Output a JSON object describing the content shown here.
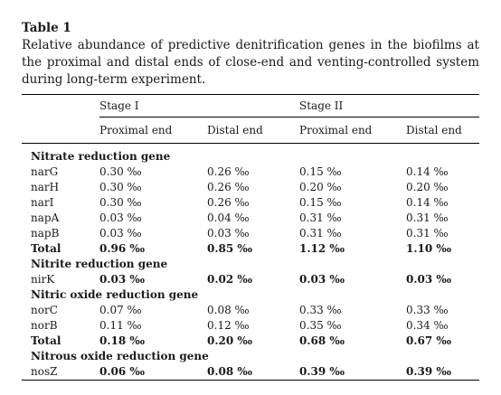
{
  "table_label": "Table 1",
  "caption": "Relative abundance of predictive denitrification genes in the biofilms at the proximal and distal ends of close-end and venting-controlled system during long-term experiment.",
  "stages": [
    "Stage I",
    "Stage II"
  ],
  "columns": [
    "Proximal end",
    "Distal end",
    "Proximal end",
    "Distal end"
  ],
  "sections": [
    {
      "title": "Nitrate reduction gene",
      "rows": [
        {
          "gene": "narG",
          "values": [
            "0.30 ‰",
            "0.26 ‰",
            "0.15 ‰",
            "0.14 ‰"
          ]
        },
        {
          "gene": "narH",
          "values": [
            "0.30 ‰",
            "0.26 ‰",
            "0.20 ‰",
            "0.20 ‰"
          ]
        },
        {
          "gene": "narI",
          "values": [
            "0.30 ‰",
            "0.26 ‰",
            "0.15 ‰",
            "0.14 ‰"
          ]
        },
        {
          "gene": "napA",
          "values": [
            "0.03 ‰",
            "0.04 ‰",
            "0.31 ‰",
            "0.31 ‰"
          ]
        },
        {
          "gene": "napB",
          "values": [
            "0.03 ‰",
            "0.03 ‰",
            "0.31 ‰",
            "0.31 ‰"
          ]
        },
        {
          "gene": "Total",
          "values": [
            "0.96 ‰",
            "0.85 ‰",
            "1.12 ‰",
            "1.10 ‰"
          ],
          "bold": true
        }
      ]
    },
    {
      "title": "Nitrite reduction gene",
      "rows": [
        {
          "gene": "nirK",
          "values": [
            "0.03 ‰",
            "0.02 ‰",
            "0.03 ‰",
            "0.03 ‰"
          ],
          "bold_values": true
        }
      ]
    },
    {
      "title": "Nitric oxide reduction gene",
      "rows": [
        {
          "gene": "norC",
          "values": [
            "0.07 ‰",
            "0.08 ‰",
            "0.33 ‰",
            "0.33 ‰"
          ]
        },
        {
          "gene": "norB",
          "values": [
            "0.11 ‰",
            "0.12 ‰",
            "0.35 ‰",
            "0.34 ‰"
          ]
        },
        {
          "gene": "Total",
          "values": [
            "0.18 ‰",
            "0.20 ‰",
            "0.68 ‰",
            "0.67 ‰"
          ],
          "bold": true
        }
      ]
    },
    {
      "title": "Nitrous oxide reduction gene",
      "rows": [
        {
          "gene": "nosZ",
          "values": [
            "0.06 ‰",
            "0.08 ‰",
            "0.39 ‰",
            "0.39 ‰"
          ],
          "bold_values": true
        }
      ]
    }
  ]
}
